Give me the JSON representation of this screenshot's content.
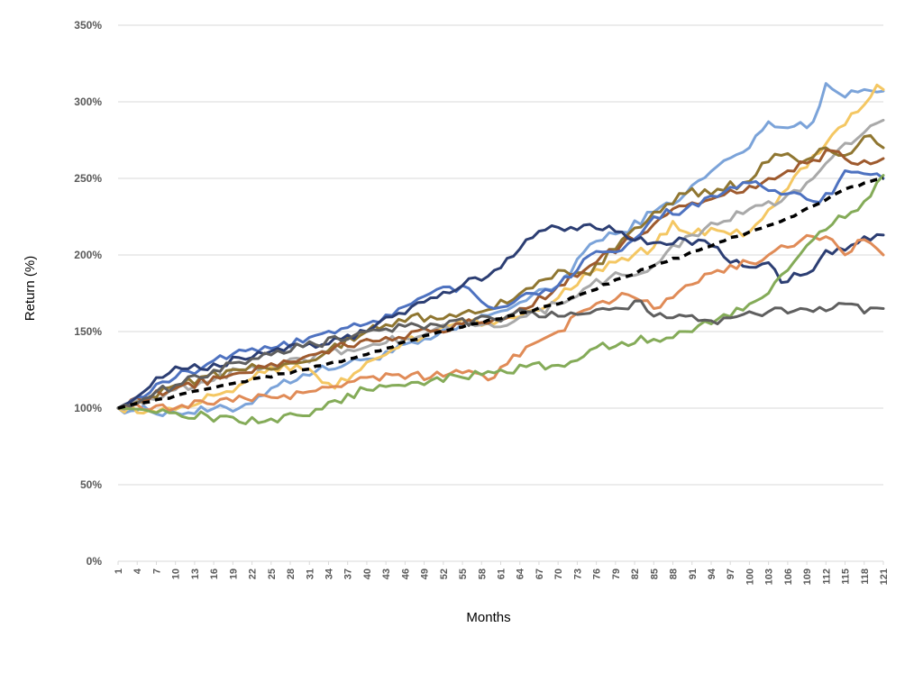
{
  "chart_data": {
    "type": "line",
    "title": "",
    "xlabel": "Months",
    "ylabel": "Return (%)",
    "x_range": [
      1,
      121
    ],
    "x_tick_step": 3,
    "ylim": [
      0,
      350
    ],
    "y_ticks": [
      0,
      50,
      100,
      150,
      200,
      250,
      300,
      350
    ],
    "y_tick_format": "{v}%",
    "grid": "horizontal",
    "legend": "none",
    "series": [
      {
        "color": "#7ba3d9",
        "anchors": [
          [
            1,
            100
          ],
          [
            10,
            97
          ],
          [
            20,
            100
          ],
          [
            25,
            113
          ],
          [
            30,
            122
          ],
          [
            40,
            132
          ],
          [
            50,
            145
          ],
          [
            60,
            162
          ],
          [
            70,
            180
          ],
          [
            75,
            207
          ],
          [
            80,
            215
          ],
          [
            85,
            228
          ],
          [
            90,
            240
          ],
          [
            95,
            258
          ],
          [
            100,
            270
          ],
          [
            103,
            287
          ],
          [
            106,
            283
          ],
          [
            110,
            287
          ],
          [
            112,
            312
          ],
          [
            115,
            303
          ],
          [
            118,
            308
          ],
          [
            121,
            307
          ]
        ]
      },
      {
        "color": "#f4c763",
        "anchors": [
          [
            1,
            100
          ],
          [
            10,
            99
          ],
          [
            20,
            115
          ],
          [
            25,
            127
          ],
          [
            30,
            125
          ],
          [
            35,
            113
          ],
          [
            40,
            130
          ],
          [
            50,
            150
          ],
          [
            55,
            158
          ],
          [
            60,
            155
          ],
          [
            65,
            163
          ],
          [
            70,
            172
          ],
          [
            75,
            188
          ],
          [
            80,
            198
          ],
          [
            85,
            205
          ],
          [
            88,
            222
          ],
          [
            90,
            215
          ],
          [
            95,
            216
          ],
          [
            100,
            215
          ],
          [
            105,
            240
          ],
          [
            110,
            265
          ],
          [
            115,
            285
          ],
          [
            118,
            298
          ],
          [
            120,
            311
          ],
          [
            121,
            308
          ]
        ]
      },
      {
        "color": "#a9a9a9",
        "anchors": [
          [
            1,
            100
          ],
          [
            10,
            112
          ],
          [
            20,
            125
          ],
          [
            30,
            132
          ],
          [
            40,
            140
          ],
          [
            50,
            150
          ],
          [
            55,
            155
          ],
          [
            60,
            153
          ],
          [
            65,
            160
          ],
          [
            70,
            168
          ],
          [
            75,
            180
          ],
          [
            80,
            187
          ],
          [
            85,
            193
          ],
          [
            90,
            212
          ],
          [
            95,
            220
          ],
          [
            100,
            230
          ],
          [
            105,
            235
          ],
          [
            110,
            250
          ],
          [
            115,
            273
          ],
          [
            118,
            280
          ],
          [
            121,
            288
          ]
        ]
      },
      {
        "color": "#8f7631",
        "anchors": [
          [
            1,
            100
          ],
          [
            10,
            115
          ],
          [
            20,
            125
          ],
          [
            30,
            130
          ],
          [
            40,
            150
          ],
          [
            45,
            158
          ],
          [
            50,
            160
          ],
          [
            55,
            162
          ],
          [
            60,
            165
          ],
          [
            65,
            178
          ],
          [
            70,
            190
          ],
          [
            75,
            187
          ],
          [
            80,
            210
          ],
          [
            85,
            228
          ],
          [
            90,
            240
          ],
          [
            95,
            243
          ],
          [
            100,
            248
          ],
          [
            102,
            260
          ],
          [
            105,
            265
          ],
          [
            108,
            260
          ],
          [
            112,
            270
          ],
          [
            115,
            265
          ],
          [
            119,
            278
          ],
          [
            121,
            270
          ]
        ]
      },
      {
        "color": "#9e5a2e",
        "anchors": [
          [
            1,
            100
          ],
          [
            10,
            113
          ],
          [
            20,
            123
          ],
          [
            30,
            133
          ],
          [
            40,
            145
          ],
          [
            50,
            150
          ],
          [
            55,
            155
          ],
          [
            60,
            158
          ],
          [
            65,
            165
          ],
          [
            70,
            180
          ],
          [
            75,
            193
          ],
          [
            80,
            207
          ],
          [
            85,
            220
          ],
          [
            90,
            232
          ],
          [
            95,
            238
          ],
          [
            100,
            245
          ],
          [
            103,
            250
          ],
          [
            106,
            255
          ],
          [
            110,
            262
          ],
          [
            113,
            268
          ],
          [
            116,
            260
          ],
          [
            121,
            263
          ]
        ]
      },
      {
        "color": "#4e72c0",
        "anchors": [
          [
            1,
            100
          ],
          [
            10,
            120
          ],
          [
            20,
            138
          ],
          [
            30,
            143
          ],
          [
            40,
            155
          ],
          [
            45,
            165
          ],
          [
            50,
            175
          ],
          [
            55,
            180
          ],
          [
            60,
            165
          ],
          [
            65,
            175
          ],
          [
            70,
            180
          ],
          [
            75,
            200
          ],
          [
            80,
            203
          ],
          [
            85,
            225
          ],
          [
            90,
            230
          ],
          [
            95,
            238
          ],
          [
            100,
            247
          ],
          [
            103,
            242
          ],
          [
            106,
            240
          ],
          [
            110,
            235
          ],
          [
            113,
            240
          ],
          [
            115,
            255
          ],
          [
            118,
            253
          ],
          [
            121,
            250
          ]
        ]
      },
      {
        "color": "#2c3e73",
        "anchors": [
          [
            1,
            100
          ],
          [
            10,
            127
          ],
          [
            15,
            125
          ],
          [
            20,
            133
          ],
          [
            30,
            140
          ],
          [
            40,
            150
          ],
          [
            45,
            162
          ],
          [
            50,
            172
          ],
          [
            55,
            180
          ],
          [
            60,
            190
          ],
          [
            65,
            210
          ],
          [
            70,
            218
          ],
          [
            75,
            220
          ],
          [
            80,
            215
          ],
          [
            85,
            208
          ],
          [
            90,
            210
          ],
          [
            95,
            205
          ],
          [
            97,
            195
          ],
          [
            100,
            192
          ],
          [
            103,
            195
          ],
          [
            105,
            182
          ],
          [
            110,
            190
          ],
          [
            112,
            203
          ],
          [
            115,
            203
          ],
          [
            118,
            212
          ],
          [
            121,
            213
          ]
        ]
      },
      {
        "color": "#e08b57",
        "anchors": [
          [
            1,
            100
          ],
          [
            10,
            100
          ],
          [
            20,
            108
          ],
          [
            25,
            107
          ],
          [
            30,
            110
          ],
          [
            40,
            120
          ],
          [
            45,
            122
          ],
          [
            50,
            120
          ],
          [
            55,
            123
          ],
          [
            60,
            120
          ],
          [
            65,
            140
          ],
          [
            70,
            150
          ],
          [
            75,
            165
          ],
          [
            80,
            175
          ],
          [
            83,
            170
          ],
          [
            85,
            165
          ],
          [
            90,
            180
          ],
          [
            95,
            190
          ],
          [
            100,
            195
          ],
          [
            103,
            200
          ],
          [
            106,
            205
          ],
          [
            110,
            212
          ],
          [
            113,
            210
          ],
          [
            115,
            200
          ],
          [
            118,
            210
          ],
          [
            121,
            200
          ]
        ]
      },
      {
        "color": "#84ab58",
        "anchors": [
          [
            1,
            100
          ],
          [
            5,
            99
          ],
          [
            10,
            97
          ],
          [
            15,
            95
          ],
          [
            20,
            91
          ],
          [
            25,
            93
          ],
          [
            30,
            95
          ],
          [
            35,
            105
          ],
          [
            40,
            112
          ],
          [
            45,
            115
          ],
          [
            50,
            118
          ],
          [
            55,
            120
          ],
          [
            60,
            123
          ],
          [
            65,
            127
          ],
          [
            70,
            128
          ],
          [
            75,
            138
          ],
          [
            80,
            143
          ],
          [
            85,
            145
          ],
          [
            90,
            150
          ],
          [
            95,
            158
          ],
          [
            100,
            168
          ],
          [
            103,
            175
          ],
          [
            106,
            190
          ],
          [
            110,
            210
          ],
          [
            113,
            220
          ],
          [
            116,
            228
          ],
          [
            118,
            235
          ],
          [
            121,
            252
          ]
        ]
      },
      {
        "color": "#5f5f5f",
        "anchors": [
          [
            1,
            100
          ],
          [
            10,
            115
          ],
          [
            20,
            130
          ],
          [
            30,
            140
          ],
          [
            40,
            150
          ],
          [
            50,
            155
          ],
          [
            60,
            158
          ],
          [
            65,
            163
          ],
          [
            70,
            160
          ],
          [
            75,
            162
          ],
          [
            80,
            165
          ],
          [
            83,
            170
          ],
          [
            85,
            160
          ],
          [
            90,
            160
          ],
          [
            95,
            155
          ],
          [
            100,
            163
          ],
          [
            103,
            163
          ],
          [
            106,
            162
          ],
          [
            110,
            163
          ],
          [
            113,
            165
          ],
          [
            116,
            168
          ],
          [
            118,
            162
          ],
          [
            121,
            165
          ]
        ]
      },
      {
        "color": "#000000",
        "dashed": true,
        "anchors": [
          [
            1,
            100
          ],
          [
            10,
            108
          ],
          [
            20,
            117
          ],
          [
            30,
            125
          ],
          [
            40,
            135
          ],
          [
            50,
            148
          ],
          [
            60,
            158
          ],
          [
            70,
            168
          ],
          [
            80,
            185
          ],
          [
            85,
            193
          ],
          [
            90,
            200
          ],
          [
            95,
            208
          ],
          [
            100,
            215
          ],
          [
            105,
            222
          ],
          [
            110,
            232
          ],
          [
            115,
            243
          ],
          [
            121,
            250
          ]
        ]
      }
    ]
  }
}
